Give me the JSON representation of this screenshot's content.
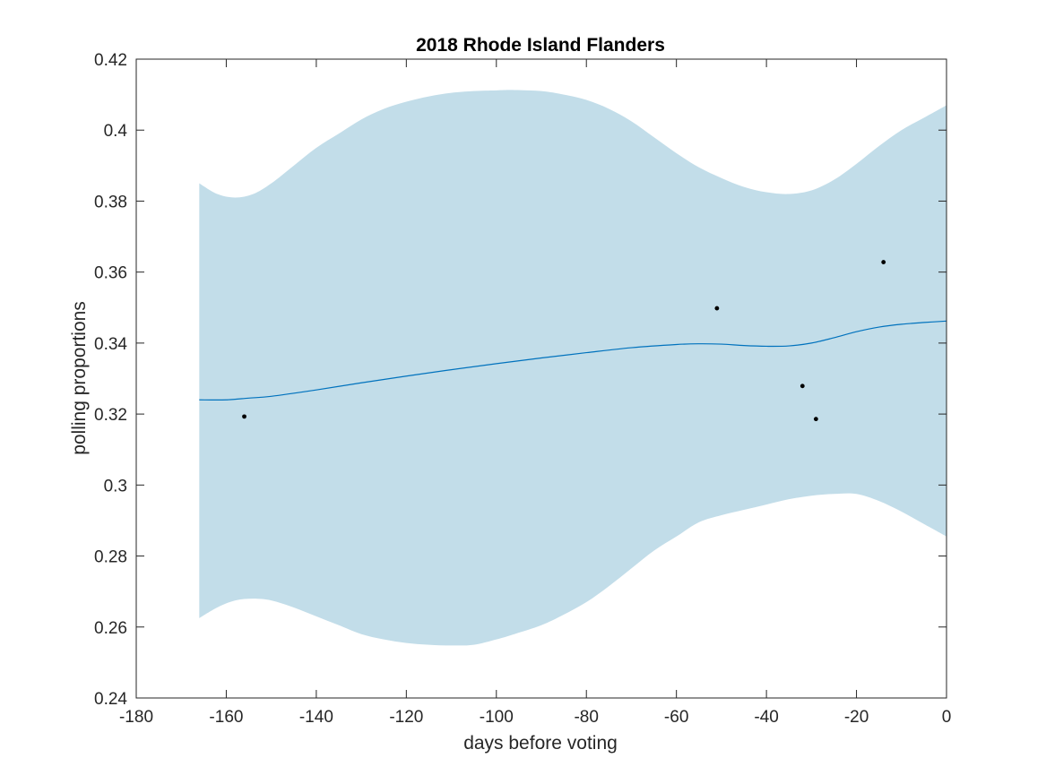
{
  "chart_data": {
    "type": "line",
    "title": "2018 Rhode Island Flanders",
    "xlabel": "days before voting",
    "ylabel": "polling proportions",
    "xlim": [
      -180,
      0
    ],
    "ylim": [
      0.24,
      0.42
    ],
    "xticks": [
      -180,
      -160,
      -140,
      -120,
      -100,
      -80,
      -60,
      -40,
      -20,
      0
    ],
    "xtick_labels": [
      "-180",
      "-160",
      "-140",
      "-120",
      "-100",
      "-80",
      "-60",
      "-40",
      "-20",
      "0"
    ],
    "yticks": [
      0.24,
      0.26,
      0.28,
      0.3,
      0.32,
      0.34,
      0.36,
      0.38,
      0.4,
      0.42
    ],
    "ytick_labels": [
      "0.24",
      "0.26",
      "0.28",
      "0.3",
      "0.32",
      "0.34",
      "0.36",
      "0.38",
      "0.4",
      "0.42"
    ],
    "grid": false,
    "colors": {
      "band": "#c2dde9",
      "line": "#0072bd",
      "points": "#000000",
      "axes": "#262626"
    },
    "band": {
      "x": [
        -166,
        -162,
        -158,
        -154,
        -150,
        -145,
        -140,
        -135,
        -130,
        -125,
        -120,
        -115,
        -110,
        -105,
        -100,
        -96,
        -90,
        -85,
        -80,
        -75,
        -70,
        -65,
        -60,
        -55,
        -50,
        -45,
        -40,
        -35,
        -30,
        -25,
        -20,
        -15,
        -10,
        -5,
        0
      ],
      "upper": [
        0.385,
        0.382,
        0.381,
        0.382,
        0.385,
        0.39,
        0.395,
        0.399,
        0.403,
        0.406,
        0.408,
        0.4095,
        0.4105,
        0.411,
        0.4112,
        0.4113,
        0.411,
        0.41,
        0.4085,
        0.406,
        0.4025,
        0.398,
        0.3935,
        0.3895,
        0.3865,
        0.384,
        0.3825,
        0.382,
        0.383,
        0.386,
        0.3905,
        0.3955,
        0.4,
        0.4035,
        0.407
      ],
      "lower": [
        0.2625,
        0.2655,
        0.2675,
        0.268,
        0.2675,
        0.2655,
        0.263,
        0.2605,
        0.258,
        0.2565,
        0.2555,
        0.255,
        0.2548,
        0.255,
        0.2565,
        0.258,
        0.2605,
        0.2635,
        0.267,
        0.2715,
        0.2765,
        0.2815,
        0.2855,
        0.2895,
        0.2915,
        0.293,
        0.2945,
        0.296,
        0.297,
        0.2975,
        0.2975,
        0.2955,
        0.2925,
        0.289,
        0.2855
      ]
    },
    "series": [
      {
        "x": [
          -166,
          -160,
          -155,
          -150,
          -140,
          -130,
          -120,
          -110,
          -100,
          -90,
          -80,
          -70,
          -60,
          -55,
          -50,
          -45,
          -40,
          -35,
          -30,
          -25,
          -20,
          -15,
          -10,
          -5,
          0
        ],
        "values": [
          0.324,
          0.324,
          0.3245,
          0.325,
          0.3268,
          0.3288,
          0.3307,
          0.3325,
          0.3342,
          0.3358,
          0.3373,
          0.3387,
          0.3396,
          0.3398,
          0.3397,
          0.3393,
          0.3391,
          0.3392,
          0.34,
          0.3415,
          0.3432,
          0.3445,
          0.3453,
          0.3458,
          0.3462
        ]
      }
    ],
    "points": {
      "x": [
        -156,
        -51,
        -32,
        -29,
        -14
      ],
      "y": [
        0.3193,
        0.3498,
        0.3279,
        0.3186,
        0.3628
      ]
    }
  }
}
